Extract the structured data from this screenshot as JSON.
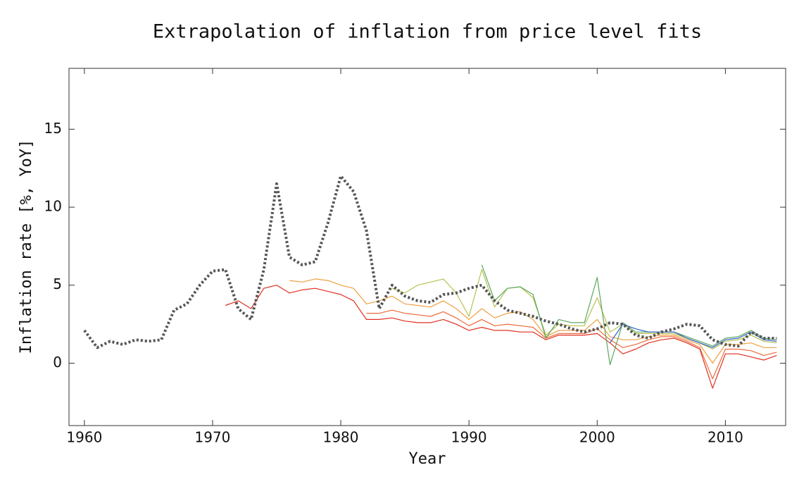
{
  "chart_data": {
    "type": "line",
    "title": "Extrapolation of inflation from price level fits",
    "x_label": "Year",
    "y_label": "Inflation rate [%, YoY]",
    "x": [
      1960,
      1961,
      1962,
      1963,
      1964,
      1965,
      1966,
      1967,
      1968,
      1969,
      1970,
      1971,
      1972,
      1973,
      1974,
      1975,
      1976,
      1977,
      1978,
      1979,
      1980,
      1981,
      1982,
      1983,
      1984,
      1985,
      1986,
      1987,
      1988,
      1989,
      1990,
      1991,
      1992,
      1993,
      1994,
      1995,
      1996,
      1997,
      1998,
      1999,
      2000,
      2001,
      2002,
      2003,
      2004,
      2005,
      2006,
      2007,
      2008,
      2009,
      2010,
      2011,
      2012,
      2013,
      2014
    ],
    "xlim": [
      1958.8,
      2014.7
    ],
    "ylim": [
      -4,
      18.9
    ],
    "xticks": [
      1960,
      1970,
      1980,
      1990,
      2000,
      2010
    ],
    "yticks": [
      0,
      5,
      10,
      15
    ],
    "series": [
      {
        "color": "#e03020",
        "values": [
          null,
          null,
          null,
          null,
          null,
          null,
          null,
          null,
          null,
          null,
          null,
          3.7,
          4.0,
          3.5,
          4.8,
          5.0,
          4.5,
          4.7,
          4.8,
          4.6,
          4.4,
          4.0,
          2.8,
          2.8,
          2.9,
          2.7,
          2.6,
          2.6,
          2.8,
          2.5,
          2.1,
          2.3,
          2.1,
          2.1,
          2.0,
          2.0,
          1.5,
          1.8,
          1.8,
          1.8,
          1.9,
          1.3,
          0.6,
          0.9,
          1.3,
          1.5,
          1.6,
          1.3,
          0.9,
          -1.6,
          0.6,
          0.6,
          0.4,
          0.2,
          0.5
        ]
      },
      {
        "color": "#ec6a3a",
        "values": [
          null,
          null,
          null,
          null,
          null,
          null,
          null,
          null,
          null,
          null,
          null,
          null,
          null,
          null,
          null,
          null,
          null,
          null,
          null,
          null,
          null,
          null,
          3.2,
          3.2,
          3.4,
          3.2,
          3.1,
          3.0,
          3.3,
          2.9,
          2.4,
          2.8,
          2.4,
          2.5,
          2.4,
          2.3,
          1.6,
          1.9,
          1.9,
          1.9,
          2.2,
          1.5,
          1.0,
          1.2,
          1.5,
          1.7,
          1.7,
          1.4,
          1.0,
          -1.0,
          0.9,
          0.9,
          0.8,
          0.5,
          0.7
        ]
      },
      {
        "color": "#eea040",
        "values": [
          null,
          null,
          null,
          null,
          null,
          null,
          null,
          null,
          null,
          null,
          null,
          null,
          null,
          null,
          null,
          null,
          5.3,
          5.2,
          5.4,
          5.3,
          5.0,
          4.8,
          3.8,
          4.0,
          4.3,
          3.8,
          3.7,
          3.6,
          4.0,
          3.5,
          2.8,
          3.5,
          2.9,
          3.2,
          3.3,
          2.8,
          1.7,
          2.1,
          2.1,
          2.1,
          2.8,
          1.7,
          1.5,
          1.5,
          1.7,
          1.8,
          1.8,
          1.5,
          1.2,
          0.0,
          1.2,
          1.2,
          1.3,
          1.0,
          1.0
        ]
      },
      {
        "color": "#b8c050",
        "values": [
          null,
          null,
          null,
          null,
          null,
          null,
          null,
          null,
          null,
          null,
          null,
          null,
          null,
          null,
          null,
          null,
          null,
          null,
          null,
          null,
          null,
          null,
          null,
          null,
          4.8,
          4.5,
          5.0,
          5.2,
          5.4,
          4.5,
          3.0,
          6.0,
          3.6,
          4.8,
          4.9,
          4.2,
          1.8,
          2.5,
          2.4,
          2.4,
          4.2,
          2.0,
          2.5,
          1.9,
          1.9,
          1.9,
          1.9,
          1.6,
          1.3,
          0.9,
          1.4,
          1.5,
          1.8,
          1.4,
          1.3
        ]
      },
      {
        "color": "#5aa860",
        "values": [
          null,
          null,
          null,
          null,
          null,
          null,
          null,
          null,
          null,
          null,
          null,
          null,
          null,
          null,
          null,
          null,
          null,
          null,
          null,
          null,
          null,
          null,
          null,
          null,
          null,
          null,
          null,
          null,
          null,
          null,
          null,
          6.3,
          4.0,
          4.8,
          4.9,
          4.4,
          1.6,
          2.8,
          2.6,
          2.6,
          5.5,
          -0.1,
          2.6,
          2.0,
          2.0,
          2.0,
          2.0,
          1.7,
          1.4,
          1.1,
          1.6,
          1.7,
          2.1,
          1.6,
          1.5
        ]
      },
      {
        "color": "#3060c8",
        "values": [
          null,
          null,
          null,
          null,
          null,
          null,
          null,
          null,
          null,
          null,
          null,
          null,
          null,
          null,
          null,
          null,
          null,
          null,
          null,
          null,
          null,
          null,
          null,
          null,
          null,
          null,
          null,
          null,
          null,
          null,
          null,
          null,
          null,
          null,
          null,
          null,
          null,
          null,
          null,
          null,
          null,
          1.3,
          2.5,
          2.2,
          2.0,
          2.0,
          2.0,
          1.6,
          1.3,
          1.0,
          1.5,
          1.6,
          2.0,
          1.5,
          1.4
        ]
      },
      {
        "color": "#555555",
        "dashed": true,
        "values": [
          2.1,
          1.0,
          1.4,
          1.2,
          1.5,
          1.4,
          1.5,
          3.4,
          3.8,
          5.0,
          5.9,
          6.0,
          3.5,
          2.8,
          6.0,
          11.5,
          6.8,
          6.3,
          6.5,
          9.0,
          12.0,
          11.0,
          8.5,
          3.5,
          5.0,
          4.3,
          4.0,
          3.9,
          4.4,
          4.5,
          4.8,
          5.0,
          4.0,
          3.4,
          3.2,
          3.0,
          2.7,
          2.5,
          2.2,
          2.0,
          2.2,
          2.6,
          2.5,
          1.8,
          1.6,
          2.0,
          2.2,
          2.5,
          2.4,
          1.5,
          1.2,
          1.1,
          2.0,
          1.6,
          1.6
        ]
      }
    ]
  }
}
